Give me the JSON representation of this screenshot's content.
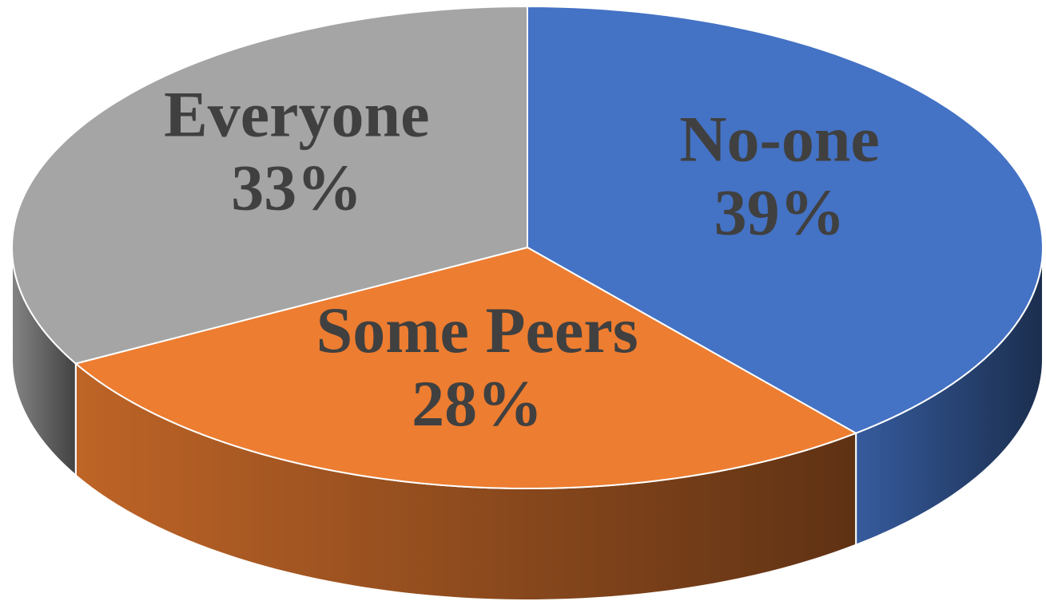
{
  "chart_data": {
    "type": "pie",
    "categories": [
      "No-one",
      "Some Peers",
      "Everyone"
    ],
    "values": [
      39,
      28,
      33
    ],
    "value_labels": [
      "39%",
      "28%",
      "33%"
    ],
    "colors": [
      "#4472c4",
      "#ed7d31",
      "#a5a5a5"
    ]
  }
}
